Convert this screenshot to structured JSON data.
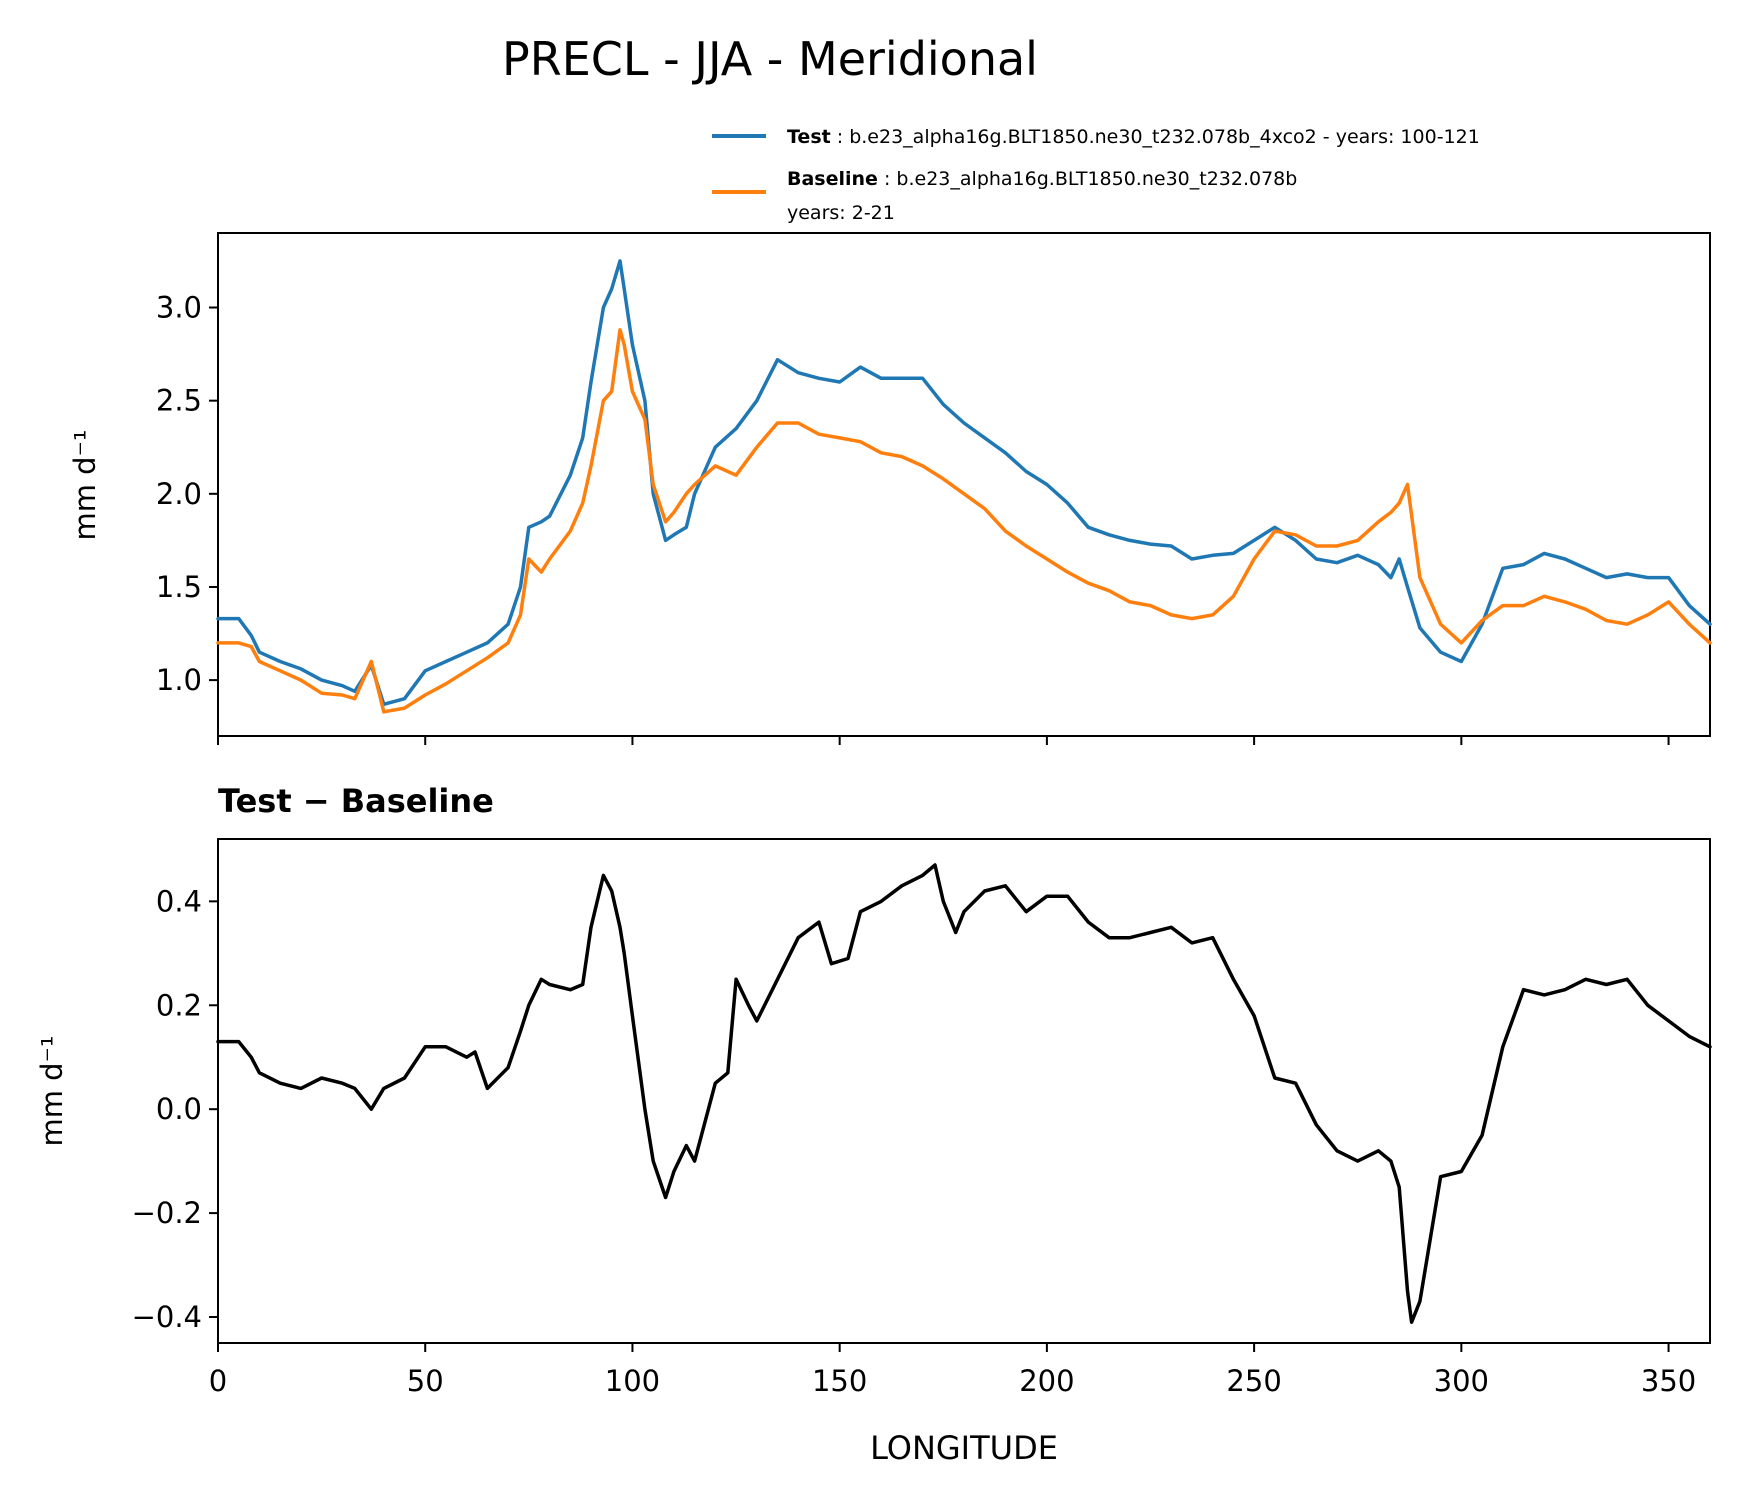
{
  "title": "PRECL - JJA - Meridional",
  "legend": {
    "test_label": "Test",
    "test_desc": ": b.e23_alpha16g.BLT1850.ne30_t232.078b_4xco2 - years: 100-121",
    "baseline_label": "Baseline",
    "baseline_desc": ": b.e23_alpha16g.BLT1850.ne30_t232.078b",
    "baseline_years": "years: 2-21"
  },
  "colors": {
    "test": "#1f77b4",
    "baseline": "#ff7f0e",
    "diff": "#000000"
  },
  "chart_data": [
    {
      "type": "line",
      "title": "",
      "xlabel": "",
      "ylabel": "mm d⁻¹",
      "xlim": [
        0,
        360
      ],
      "ylim": [
        0.7,
        3.4
      ],
      "yticks": [
        1.0,
        1.5,
        2.0,
        2.5,
        3.0
      ],
      "ytick_labels": [
        "1.0",
        "1.5",
        "2.0",
        "2.5",
        "3.0"
      ],
      "xticks": [
        0,
        50,
        100,
        150,
        200,
        250,
        300,
        350
      ],
      "x": [
        0,
        5,
        8,
        10,
        15,
        20,
        25,
        30,
        33,
        37,
        40,
        45,
        50,
        55,
        60,
        65,
        70,
        73,
        75,
        78,
        80,
        85,
        88,
        90,
        93,
        95,
        97,
        98,
        100,
        103,
        105,
        108,
        110,
        113,
        115,
        120,
        125,
        130,
        135,
        140,
        145,
        150,
        155,
        160,
        165,
        170,
        175,
        180,
        185,
        190,
        195,
        200,
        205,
        210,
        215,
        220,
        225,
        230,
        235,
        240,
        245,
        250,
        255,
        260,
        265,
        270,
        275,
        280,
        283,
        285,
        287,
        290,
        295,
        300,
        305,
        310,
        315,
        320,
        325,
        330,
        335,
        340,
        345,
        350,
        355,
        360
      ],
      "series": [
        {
          "name": "Test",
          "values": [
            1.33,
            1.33,
            1.24,
            1.15,
            1.1,
            1.06,
            1.0,
            0.97,
            0.94,
            1.08,
            0.87,
            0.9,
            1.05,
            1.1,
            1.15,
            1.2,
            1.3,
            1.5,
            1.82,
            1.85,
            1.88,
            2.1,
            2.3,
            2.6,
            3.0,
            3.1,
            3.25,
            3.1,
            2.8,
            2.5,
            2.0,
            1.75,
            1.78,
            1.82,
            2.0,
            2.25,
            2.35,
            2.5,
            2.72,
            2.65,
            2.62,
            2.6,
            2.68,
            2.62,
            2.62,
            2.62,
            2.48,
            2.38,
            2.3,
            2.22,
            2.12,
            2.05,
            1.95,
            1.82,
            1.78,
            1.75,
            1.73,
            1.72,
            1.65,
            1.67,
            1.68,
            1.75,
            1.82,
            1.75,
            1.65,
            1.63,
            1.67,
            1.62,
            1.55,
            1.65,
            1.5,
            1.28,
            1.15,
            1.1,
            1.3,
            1.6,
            1.62,
            1.68,
            1.65,
            1.6,
            1.55,
            1.57,
            1.55,
            1.55,
            1.4,
            1.3
          ]
        },
        {
          "name": "Baseline",
          "values": [
            1.2,
            1.2,
            1.18,
            1.1,
            1.05,
            1.0,
            0.93,
            0.92,
            0.9,
            1.1,
            0.83,
            0.85,
            0.92,
            0.98,
            1.05,
            1.12,
            1.2,
            1.35,
            1.65,
            1.58,
            1.65,
            1.8,
            1.95,
            2.15,
            2.5,
            2.55,
            2.88,
            2.8,
            2.55,
            2.4,
            2.05,
            1.85,
            1.9,
            2.0,
            2.05,
            2.15,
            2.1,
            2.25,
            2.38,
            2.38,
            2.32,
            2.3,
            2.28,
            2.22,
            2.2,
            2.15,
            2.08,
            2.0,
            1.92,
            1.8,
            1.72,
            1.65,
            1.58,
            1.52,
            1.48,
            1.42,
            1.4,
            1.35,
            1.33,
            1.35,
            1.45,
            1.65,
            1.8,
            1.78,
            1.72,
            1.72,
            1.75,
            1.85,
            1.9,
            1.95,
            2.05,
            1.55,
            1.3,
            1.2,
            1.32,
            1.4,
            1.4,
            1.45,
            1.42,
            1.38,
            1.32,
            1.3,
            1.35,
            1.42,
            1.3,
            1.2
          ]
        }
      ]
    },
    {
      "type": "line",
      "title": "Test − Baseline",
      "xlabel": "LONGITUDE",
      "ylabel": "mm d⁻¹",
      "xlim": [
        0,
        360
      ],
      "ylim": [
        -0.45,
        0.52
      ],
      "yticks": [
        -0.4,
        -0.2,
        0.0,
        0.2,
        0.4
      ],
      "ytick_labels": [
        "−0.4",
        "−0.2",
        "0.0",
        "0.2",
        "0.4"
      ],
      "xticks": [
        0,
        50,
        100,
        150,
        200,
        250,
        300,
        350
      ],
      "xtick_labels": [
        "0",
        "50",
        "100",
        "150",
        "200",
        "250",
        "300",
        "350"
      ],
      "x": [
        0,
        5,
        8,
        10,
        15,
        20,
        25,
        30,
        33,
        37,
        40,
        45,
        50,
        55,
        60,
        62,
        65,
        70,
        73,
        75,
        78,
        80,
        85,
        88,
        90,
        93,
        95,
        97,
        98,
        100,
        103,
        105,
        108,
        110,
        113,
        115,
        120,
        123,
        125,
        128,
        130,
        135,
        140,
        145,
        148,
        152,
        155,
        160,
        165,
        170,
        173,
        175,
        178,
        180,
        185,
        190,
        195,
        200,
        205,
        210,
        215,
        220,
        225,
        230,
        235,
        240,
        245,
        250,
        255,
        260,
        265,
        270,
        275,
        280,
        283,
        285,
        287,
        288,
        290,
        295,
        300,
        305,
        310,
        315,
        320,
        325,
        330,
        335,
        340,
        345,
        350,
        355,
        360
      ],
      "series": [
        {
          "name": "Test − Baseline",
          "values": [
            0.13,
            0.13,
            0.1,
            0.07,
            0.05,
            0.04,
            0.06,
            0.05,
            0.04,
            0.0,
            0.04,
            0.06,
            0.12,
            0.12,
            0.1,
            0.11,
            0.04,
            0.08,
            0.15,
            0.2,
            0.25,
            0.24,
            0.23,
            0.24,
            0.35,
            0.45,
            0.42,
            0.35,
            0.3,
            0.18,
            0.0,
            -0.1,
            -0.17,
            -0.12,
            -0.07,
            -0.1,
            0.05,
            0.07,
            0.25,
            0.2,
            0.17,
            0.25,
            0.33,
            0.36,
            0.28,
            0.29,
            0.38,
            0.4,
            0.43,
            0.45,
            0.47,
            0.4,
            0.34,
            0.38,
            0.42,
            0.43,
            0.38,
            0.41,
            0.41,
            0.36,
            0.33,
            0.33,
            0.34,
            0.35,
            0.32,
            0.33,
            0.25,
            0.18,
            0.06,
            0.05,
            -0.03,
            -0.08,
            -0.1,
            -0.08,
            -0.1,
            -0.15,
            -0.35,
            -0.41,
            -0.37,
            -0.13,
            -0.12,
            -0.05,
            0.12,
            0.23,
            0.22,
            0.23,
            0.25,
            0.24,
            0.25,
            0.2,
            0.17,
            0.14,
            0.12
          ]
        }
      ]
    }
  ]
}
